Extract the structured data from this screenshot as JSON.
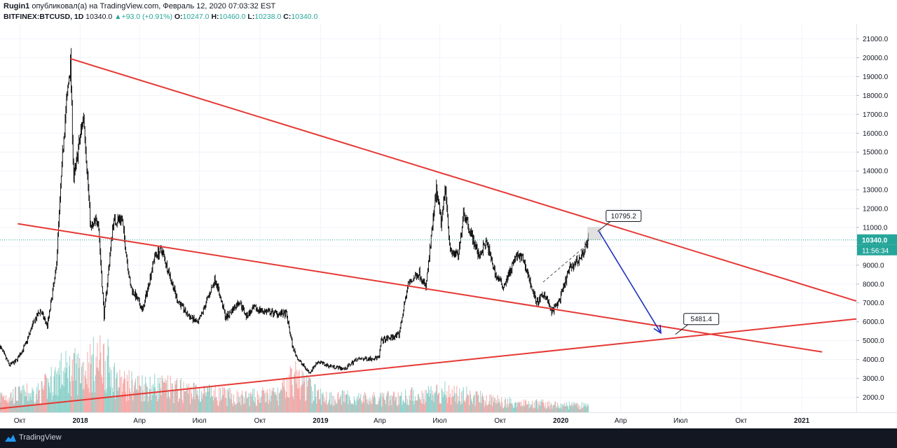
{
  "header": {
    "author": "Rugin1",
    "published_text": "опубликовал(а) на TradingView.com, Февраль 12, 2020 07:03:32 EST",
    "symbol": "BITFINEX:BTCUSD, 1D",
    "last": "10340.0",
    "change": "+93.0 (+0.91%)",
    "o_label": "O:",
    "o_value": "10247.0",
    "h_label": "H:",
    "h_value": "10460.0",
    "l_label": "L:",
    "l_value": "10238.0",
    "c_label": "C:",
    "c_value": "10340.0"
  },
  "footer": {
    "brand": "TradingView"
  },
  "colors": {
    "up": "#26a69a",
    "down": "#ef5350",
    "trend": "#e53935",
    "projection": "#1e2fbd",
    "price_tag": "#26a69a",
    "timer_tag": "#26a69a",
    "grid": "#f0f3fa",
    "axis_text": "#131722"
  },
  "chart_data": {
    "type": "candlestick",
    "symbol": "BITFINEX:BTCUSD",
    "interval": "1D",
    "yticks": [
      2000,
      3000,
      4000,
      5000,
      6000,
      7000,
      8000,
      9000,
      10000,
      11000,
      12000,
      13000,
      14000,
      15000,
      16000,
      17000,
      18000,
      19000,
      20000,
      21000
    ],
    "ytick_labels": [
      "2000.0",
      "3000.0",
      "4000.0",
      "5000.0",
      "6000.0",
      "7000.0",
      "8000.0",
      "9000.0",
      "10000.0",
      "11000.0",
      "12000.0",
      "13000.0",
      "14000.0",
      "15000.0",
      "16000.0",
      "17000.0",
      "18000.0",
      "19000.0",
      "20000.0",
      "21000.0"
    ],
    "ylim": [
      1200,
      21800
    ],
    "xlim": [
      "2017-09-01",
      "2021-03-25"
    ],
    "xticks": [
      {
        "date": "2017-10-01",
        "label": "Окт",
        "bold": false
      },
      {
        "date": "2018-01-01",
        "label": "2018",
        "bold": true
      },
      {
        "date": "2018-04-01",
        "label": "Апр",
        "bold": false
      },
      {
        "date": "2018-07-01",
        "label": "Июл",
        "bold": false
      },
      {
        "date": "2018-10-01",
        "label": "Окт",
        "bold": false
      },
      {
        "date": "2019-01-01",
        "label": "2019",
        "bold": true
      },
      {
        "date": "2019-04-01",
        "label": "Апр",
        "bold": false
      },
      {
        "date": "2019-07-01",
        "label": "Июл",
        "bold": false
      },
      {
        "date": "2019-10-01",
        "label": "Окт",
        "bold": false
      },
      {
        "date": "2020-01-01",
        "label": "2020",
        "bold": true
      },
      {
        "date": "2020-04-01",
        "label": "Апр",
        "bold": false
      },
      {
        "date": "2020-07-01",
        "label": "Июл",
        "bold": false
      },
      {
        "date": "2020-10-01",
        "label": "Окт",
        "bold": false
      },
      {
        "date": "2021-01-01",
        "label": "2021",
        "bold": true
      }
    ],
    "price_path": [
      [
        "2017-09-01",
        4700
      ],
      [
        "2017-09-15",
        3700
      ],
      [
        "2017-09-25",
        3900
      ],
      [
        "2017-10-10",
        4800
      ],
      [
        "2017-10-20",
        5800
      ],
      [
        "2017-11-01",
        6600
      ],
      [
        "2017-11-12",
        5800
      ],
      [
        "2017-11-25",
        8700
      ],
      [
        "2017-12-07",
        16000
      ],
      [
        "2017-12-17",
        19800
      ],
      [
        "2017-12-22",
        13500
      ],
      [
        "2018-01-06",
        17000
      ],
      [
        "2018-01-17",
        10900
      ],
      [
        "2018-01-28",
        11500
      ],
      [
        "2018-02-06",
        6300
      ],
      [
        "2018-02-20",
        11300
      ],
      [
        "2018-03-05",
        11500
      ],
      [
        "2018-03-18",
        7900
      ],
      [
        "2018-04-06",
        6600
      ],
      [
        "2018-04-24",
        9500
      ],
      [
        "2018-05-05",
        9800
      ],
      [
        "2018-05-28",
        7200
      ],
      [
        "2018-06-12",
        6400
      ],
      [
        "2018-06-29",
        5900
      ],
      [
        "2018-07-25",
        8300
      ],
      [
        "2018-08-10",
        6200
      ],
      [
        "2018-08-31",
        7100
      ],
      [
        "2018-09-10",
        6300
      ],
      [
        "2018-09-22",
        6700
      ],
      [
        "2018-10-15",
        6500
      ],
      [
        "2018-11-10",
        6400
      ],
      [
        "2018-11-20",
        4600
      ],
      [
        "2018-11-28",
        4000
      ],
      [
        "2018-12-15",
        3300
      ],
      [
        "2018-12-28",
        3900
      ],
      [
        "2019-01-10",
        3700
      ],
      [
        "2019-02-07",
        3500
      ],
      [
        "2019-02-24",
        4000
      ],
      [
        "2019-03-31",
        4100
      ],
      [
        "2019-04-03",
        5000
      ],
      [
        "2019-04-30",
        5300
      ],
      [
        "2019-05-14",
        8000
      ],
      [
        "2019-05-31",
        8600
      ],
      [
        "2019-06-10",
        7800
      ],
      [
        "2019-06-26",
        13000
      ],
      [
        "2019-07-03",
        11200
      ],
      [
        "2019-07-10",
        13200
      ],
      [
        "2019-07-17",
        9700
      ],
      [
        "2019-07-30",
        9500
      ],
      [
        "2019-08-06",
        11900
      ],
      [
        "2019-08-29",
        9500
      ],
      [
        "2019-09-10",
        10200
      ],
      [
        "2019-09-25",
        8400
      ],
      [
        "2019-10-06",
        7900
      ],
      [
        "2019-10-26",
        9500
      ],
      [
        "2019-11-05",
        9300
      ],
      [
        "2019-11-25",
        7000
      ],
      [
        "2019-12-08",
        7500
      ],
      [
        "2019-12-18",
        6500
      ],
      [
        "2019-12-31",
        7200
      ],
      [
        "2020-01-14",
        8800
      ],
      [
        "2020-01-31",
        9400
      ],
      [
        "2020-02-12",
        10340
      ]
    ],
    "volume_path": [
      [
        "2017-09-01",
        0.22
      ],
      [
        "2017-11-01",
        0.28
      ],
      [
        "2017-12-01",
        0.55
      ],
      [
        "2018-01-01",
        0.6
      ],
      [
        "2018-02-06",
        0.75
      ],
      [
        "2018-03-01",
        0.4
      ],
      [
        "2018-05-01",
        0.35
      ],
      [
        "2018-07-01",
        0.28
      ],
      [
        "2018-09-01",
        0.2
      ],
      [
        "2018-11-01",
        0.25
      ],
      [
        "2018-11-20",
        0.5
      ],
      [
        "2019-01-01",
        0.22
      ],
      [
        "2019-04-01",
        0.18
      ],
      [
        "2019-06-01",
        0.24
      ],
      [
        "2019-07-01",
        0.3
      ],
      [
        "2019-10-01",
        0.15
      ],
      [
        "2020-01-01",
        0.1
      ],
      [
        "2020-02-12",
        0.09
      ]
    ],
    "trendlines": [
      {
        "name": "resistance",
        "from": [
          "2017-12-17",
          19950
        ],
        "to": [
          "2021-03-25",
          7100
        ]
      },
      {
        "name": "mid",
        "from": [
          "2017-09-28",
          11200
        ],
        "to": [
          "2021-02-01",
          4400
        ]
      },
      {
        "name": "support",
        "from": [
          "2017-09-01",
          1400
        ],
        "to": [
          "2021-03-25",
          6150
        ]
      }
    ],
    "projection": {
      "from": [
        "2020-02-28",
        10795
      ],
      "to": [
        "2020-06-01",
        5400
      ]
    },
    "zone": {
      "from": [
        "2020-02-11",
        10360
      ],
      "to": [
        "2020-03-02",
        11000
      ]
    },
    "rising_wedge_dash": {
      "from": [
        "2019-12-05",
        8100
      ],
      "to": [
        "2020-02-12",
        10150
      ]
    },
    "callouts": [
      {
        "label": "10795.2",
        "anchor": [
          "2020-02-26",
          10795
        ]
      },
      {
        "label": "5481.4",
        "anchor": [
          "2020-06-23",
          5330
        ]
      }
    ],
    "last_price": {
      "value": 10340,
      "label": "10340.0",
      "timer": "11:56:34"
    }
  }
}
